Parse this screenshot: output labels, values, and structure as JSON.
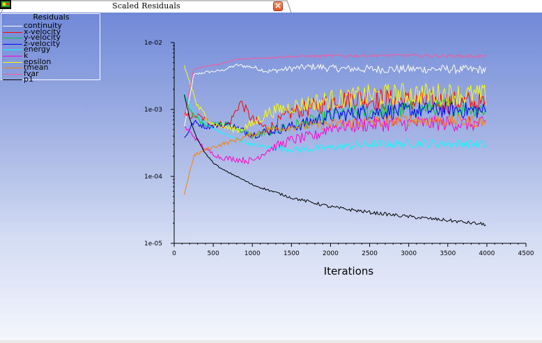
{
  "window": {
    "title": "Scaled Residuals",
    "close_icon": "close-icon"
  },
  "legend": {
    "title": "Residuals"
  },
  "chart_data": {
    "type": "line",
    "x_label": "Iterations",
    "y_scale": "log",
    "xlim": [
      0,
      4500
    ],
    "ylim": [
      1e-05,
      0.01
    ],
    "x_ticks": [
      "0",
      "500",
      "1000",
      "1500",
      "2000",
      "2500",
      "3000",
      "3500",
      "4000",
      "4500"
    ],
    "y_ticks": [
      "1e-02",
      "1e-03",
      "1e-04",
      "1e-05"
    ],
    "grid": false,
    "legend_placement": "top-left",
    "series": [
      {
        "name": "continuity",
        "color": "#ffffff",
        "noise": 0.11,
        "points": [
          [
            130,
            0.00055
          ],
          [
            250,
            0.0033
          ],
          [
            400,
            0.0036
          ],
          [
            600,
            0.0038
          ],
          [
            800,
            0.0046
          ],
          [
            1000,
            0.0043
          ],
          [
            1200,
            0.0037
          ],
          [
            1500,
            0.0041
          ],
          [
            1800,
            0.0044
          ],
          [
            2000,
            0.0041
          ],
          [
            2500,
            0.004
          ],
          [
            3000,
            0.004
          ],
          [
            3500,
            0.004
          ],
          [
            4000,
            0.0039
          ]
        ]
      },
      {
        "name": "x-velocity",
        "color": "#ff0000",
        "noise": 0.3,
        "points": [
          [
            130,
            0.0008
          ],
          [
            300,
            0.0008
          ],
          [
            500,
            0.0006
          ],
          [
            700,
            0.0006
          ],
          [
            850,
            0.0013
          ],
          [
            1000,
            0.0007
          ],
          [
            1200,
            0.0005
          ],
          [
            1500,
            0.0009
          ],
          [
            1800,
            0.0011
          ],
          [
            2000,
            0.0013
          ],
          [
            2300,
            0.0015
          ],
          [
            2600,
            0.0014
          ],
          [
            3000,
            0.0013
          ],
          [
            3500,
            0.0013
          ],
          [
            4000,
            0.0012
          ]
        ]
      },
      {
        "name": "y-velocity",
        "color": "#00cc33",
        "noise": 0.22,
        "points": [
          [
            130,
            0.0016
          ],
          [
            250,
            0.0008
          ],
          [
            400,
            0.0006
          ],
          [
            700,
            0.0006
          ],
          [
            1000,
            0.0004
          ],
          [
            1300,
            0.0005
          ],
          [
            1600,
            0.0006
          ],
          [
            2000,
            0.0008
          ],
          [
            2400,
            0.0009
          ],
          [
            3000,
            0.001
          ],
          [
            3500,
            0.0011
          ],
          [
            4000,
            0.001
          ]
        ]
      },
      {
        "name": "z-velocity",
        "color": "#0000ff",
        "noise": 0.22,
        "points": [
          [
            130,
            0.00037
          ],
          [
            250,
            0.00065
          ],
          [
            400,
            0.00055
          ],
          [
            700,
            0.0006
          ],
          [
            1000,
            0.00042
          ],
          [
            1300,
            0.0005
          ],
          [
            1600,
            0.00058
          ],
          [
            2000,
            0.0008
          ],
          [
            2400,
            0.0009
          ],
          [
            3000,
            0.00095
          ],
          [
            3500,
            0.001
          ],
          [
            4000,
            0.00095
          ]
        ]
      },
      {
        "name": "energy",
        "color": "#00ffff",
        "noise": 0.11,
        "points": [
          [
            130,
            0.0017
          ],
          [
            250,
            0.0009
          ],
          [
            400,
            0.0006
          ],
          [
            600,
            0.00045
          ],
          [
            800,
            0.00036
          ],
          [
            1000,
            0.0003
          ],
          [
            1200,
            0.00027
          ],
          [
            1500,
            0.00025
          ],
          [
            1800,
            0.00026
          ],
          [
            2000,
            0.00027
          ],
          [
            2500,
            0.0003
          ],
          [
            3000,
            0.00031
          ],
          [
            3500,
            0.00031
          ],
          [
            4000,
            0.0003
          ]
        ]
      },
      {
        "name": "k",
        "color": "#ff00cc",
        "noise": 0.2,
        "points": [
          [
            130,
            0.00055
          ],
          [
            250,
            0.0004
          ],
          [
            400,
            0.00025
          ],
          [
            600,
            0.00019
          ],
          [
            800,
            0.00018
          ],
          [
            1000,
            0.00017
          ],
          [
            1200,
            0.00025
          ],
          [
            1500,
            0.00035
          ],
          [
            1800,
            0.0004
          ],
          [
            2000,
            0.00055
          ],
          [
            2500,
            0.0006
          ],
          [
            3000,
            0.00062
          ],
          [
            3500,
            0.00062
          ],
          [
            4000,
            0.0006
          ]
        ]
      },
      {
        "name": "epsilon",
        "color": "#ffff00",
        "noise": 0.3,
        "points": [
          [
            130,
            0.0045
          ],
          [
            200,
            0.0025
          ],
          [
            300,
            0.0011
          ],
          [
            500,
            0.0006
          ],
          [
            800,
            0.0005
          ],
          [
            1000,
            0.0006
          ],
          [
            1200,
            0.0009
          ],
          [
            1500,
            0.0011
          ],
          [
            1800,
            0.0013
          ],
          [
            2000,
            0.0014
          ],
          [
            2500,
            0.0016
          ],
          [
            3000,
            0.0017
          ],
          [
            3500,
            0.0017
          ],
          [
            4000,
            0.0016
          ]
        ]
      },
      {
        "name": "tmean",
        "color": "#ff7f00",
        "noise": 0.16,
        "points": [
          [
            130,
            5.5e-05
          ],
          [
            250,
            0.0002
          ],
          [
            400,
            0.00025
          ],
          [
            600,
            0.0003
          ],
          [
            800,
            0.00035
          ],
          [
            1000,
            0.00042
          ],
          [
            1200,
            0.0005
          ],
          [
            1500,
            0.00055
          ],
          [
            2000,
            0.0006
          ],
          [
            2500,
            0.00065
          ],
          [
            3000,
            0.0007
          ],
          [
            3500,
            0.00068
          ],
          [
            4000,
            0.00065
          ]
        ]
      },
      {
        "name": "fvar",
        "color": "#ff5599",
        "noise": 0.05,
        "points": [
          [
            130,
            0.0008
          ],
          [
            250,
            0.004
          ],
          [
            400,
            0.0044
          ],
          [
            600,
            0.0048
          ],
          [
            800,
            0.0056
          ],
          [
            1000,
            0.0058
          ],
          [
            1500,
            0.0062
          ],
          [
            2000,
            0.0063
          ],
          [
            2500,
            0.0064
          ],
          [
            3000,
            0.0064
          ],
          [
            3500,
            0.0063
          ],
          [
            4000,
            0.0062
          ]
        ]
      },
      {
        "name": "p1",
        "color": "#000000",
        "noise": 0.05,
        "points": [
          [
            130,
            0.0017
          ],
          [
            200,
            0.0007
          ],
          [
            300,
            0.00035
          ],
          [
            400,
            0.00022
          ],
          [
            500,
            0.00016
          ],
          [
            600,
            0.00013
          ],
          [
            800,
            0.0001
          ],
          [
            1000,
            7.5e-05
          ],
          [
            1250,
            6e-05
          ],
          [
            1500,
            4.8e-05
          ],
          [
            1800,
            4e-05
          ],
          [
            2000,
            3.5e-05
          ],
          [
            2500,
            2.9e-05
          ],
          [
            3000,
            2.5e-05
          ],
          [
            3500,
            2.2e-05
          ],
          [
            4000,
            1.9e-05
          ]
        ]
      }
    ]
  }
}
